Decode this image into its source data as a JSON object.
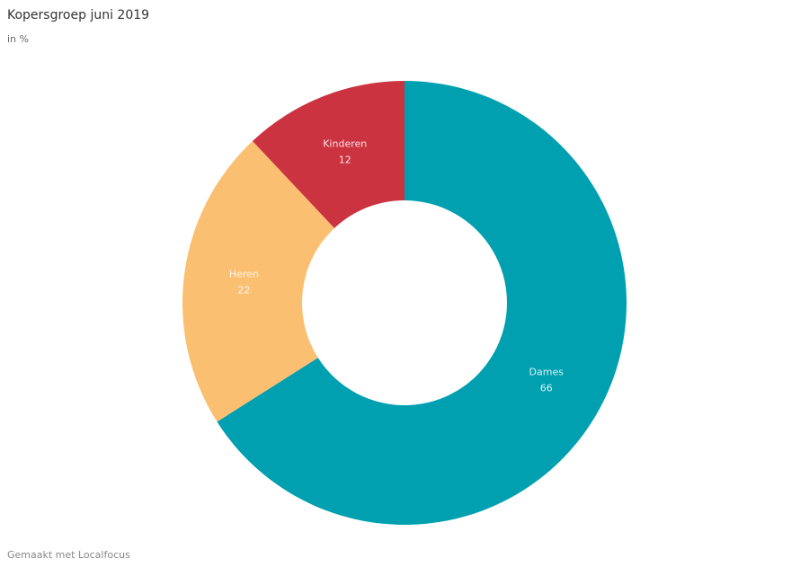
{
  "chart_data": {
    "type": "donut",
    "title": "Kopersgroep juni 2019",
    "subtitle": "in %",
    "categories": [
      "Dames",
      "Heren",
      "Kinderen"
    ],
    "values": [
      66,
      22,
      12
    ],
    "colors": [
      "#00a0b0",
      "#fbbf72",
      "#cc3340"
    ]
  },
  "footer": "Gemaakt met Localfocus"
}
